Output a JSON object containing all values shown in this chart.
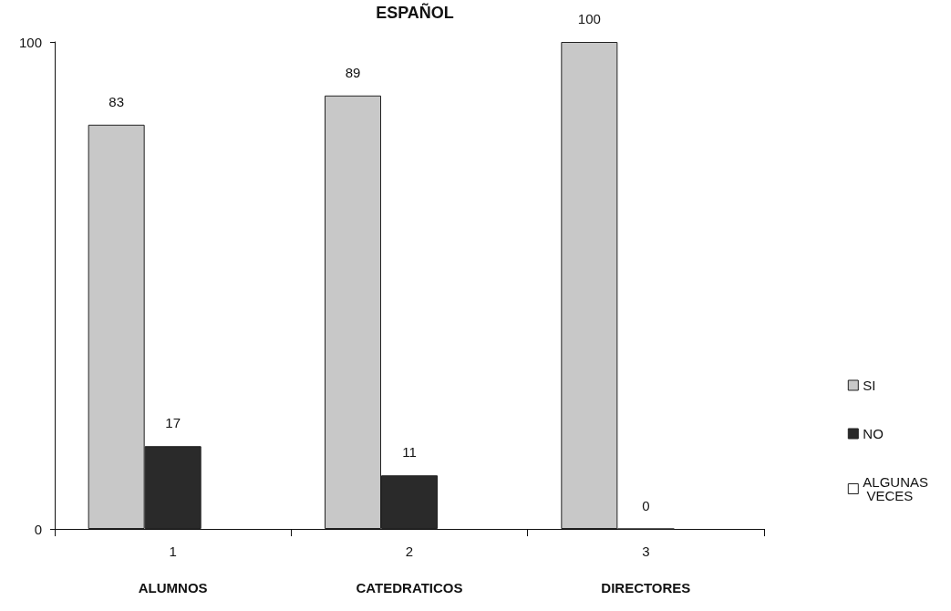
{
  "chart_data": {
    "type": "bar",
    "title": "ESPAÑOL",
    "categories": [
      "1",
      "2",
      "3"
    ],
    "series": [
      {
        "name": "SI",
        "color": "#c8c8c8",
        "values": [
          83,
          89,
          100
        ]
      },
      {
        "name": "NO",
        "color": "#2a2a2a",
        "values": [
          17,
          11,
          0
        ]
      },
      {
        "name": "ALGUNAS VECES",
        "color": "#ffffff",
        "values": [
          null,
          null,
          null
        ]
      }
    ],
    "annotations": [
      "ALUMNOS",
      "CATEDRATICOS",
      "DIRECTORES"
    ],
    "ylim": [
      0,
      100
    ],
    "yticks": [
      0,
      100
    ],
    "data_labels": true,
    "legend": "right"
  }
}
